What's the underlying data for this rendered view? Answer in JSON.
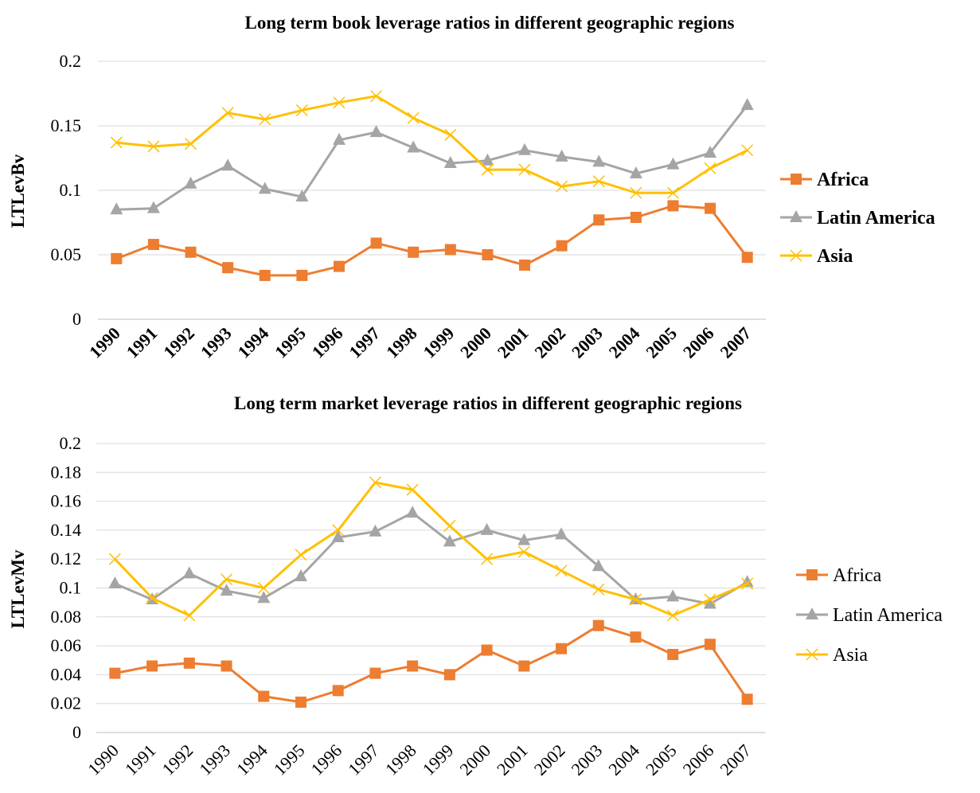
{
  "chart_data": [
    {
      "type": "line",
      "title": "Long term book leverage ratios in different geographic regions",
      "xlabel": "",
      "ylabel": "LTLevBv",
      "ylim": [
        0,
        0.2
      ],
      "yticks": [
        "0",
        "0.05",
        "0.1",
        "0.15",
        "0.2"
      ],
      "ytick_values": [
        0,
        0.05,
        0.1,
        0.15,
        0.2
      ],
      "categories": [
        "1990",
        "1991",
        "1992",
        "1993",
        "1994",
        "1995",
        "1996",
        "1997",
        "1998",
        "1999",
        "2000",
        "2001",
        "2002",
        "2003",
        "2004",
        "2005",
        "2006",
        "2007"
      ],
      "grid": true,
      "legend_position": "right",
      "series": [
        {
          "name": "Africa",
          "color": "#ED7D31",
          "marker": "square",
          "values": [
            0.047,
            0.058,
            0.052,
            0.04,
            0.034,
            0.034,
            0.041,
            0.059,
            0.052,
            0.054,
            0.05,
            0.042,
            0.057,
            0.077,
            0.079,
            0.088,
            0.086,
            0.048
          ]
        },
        {
          "name": "Latin America",
          "color": "#A5A5A5",
          "marker": "triangle",
          "values": [
            0.085,
            0.086,
            0.105,
            0.119,
            0.101,
            0.095,
            0.139,
            0.145,
            0.133,
            0.121,
            0.123,
            0.131,
            0.126,
            0.122,
            0.113,
            0.12,
            0.129,
            0.166
          ]
        },
        {
          "name": "Asia",
          "color": "#FFC000",
          "marker": "x",
          "values": [
            0.137,
            0.134,
            0.136,
            0.16,
            0.155,
            0.162,
            0.168,
            0.173,
            0.156,
            0.143,
            0.116,
            0.116,
            0.103,
            0.107,
            0.098,
            0.098,
            0.117,
            0.131
          ]
        }
      ]
    },
    {
      "type": "line",
      "title": "Long term market leverage ratios in different geographic regions",
      "xlabel": "",
      "ylabel": "LTLevMv",
      "ylim": [
        0,
        0.2
      ],
      "yticks": [
        "0",
        "0.02",
        "0.04",
        "0.06",
        "0.08",
        "0.1",
        "0.12",
        "0.14",
        "0.16",
        "0.18",
        "0.2"
      ],
      "ytick_values": [
        0,
        0.02,
        0.04,
        0.06,
        0.08,
        0.1,
        0.12,
        0.14,
        0.16,
        0.18,
        0.2
      ],
      "categories": [
        "1990",
        "1991",
        "1992",
        "1993",
        "1994",
        "1995",
        "1996",
        "1997",
        "1998",
        "1999",
        "2000",
        "2001",
        "2002",
        "2003",
        "2004",
        "2005",
        "2006",
        "2007"
      ],
      "grid": true,
      "legend_position": "right",
      "series": [
        {
          "name": "Africa",
          "color": "#ED7D31",
          "marker": "square",
          "values": [
            0.041,
            0.046,
            0.048,
            0.046,
            0.025,
            0.021,
            0.029,
            0.041,
            0.046,
            0.04,
            0.057,
            0.046,
            0.058,
            0.074,
            0.066,
            0.054,
            0.061,
            0.023
          ]
        },
        {
          "name": "Latin America",
          "color": "#A5A5A5",
          "marker": "triangle",
          "values": [
            0.103,
            0.092,
            0.11,
            0.098,
            0.093,
            0.108,
            0.135,
            0.139,
            0.152,
            0.132,
            0.14,
            0.133,
            0.137,
            0.115,
            0.092,
            0.094,
            0.089,
            0.104
          ]
        },
        {
          "name": "Asia",
          "color": "#FFC000",
          "marker": "x",
          "values": [
            0.12,
            0.093,
            0.081,
            0.106,
            0.1,
            0.123,
            0.14,
            0.173,
            0.168,
            0.143,
            0.12,
            0.125,
            0.112,
            0.099,
            0.092,
            0.081,
            0.092,
            0.103
          ]
        }
      ]
    }
  ]
}
